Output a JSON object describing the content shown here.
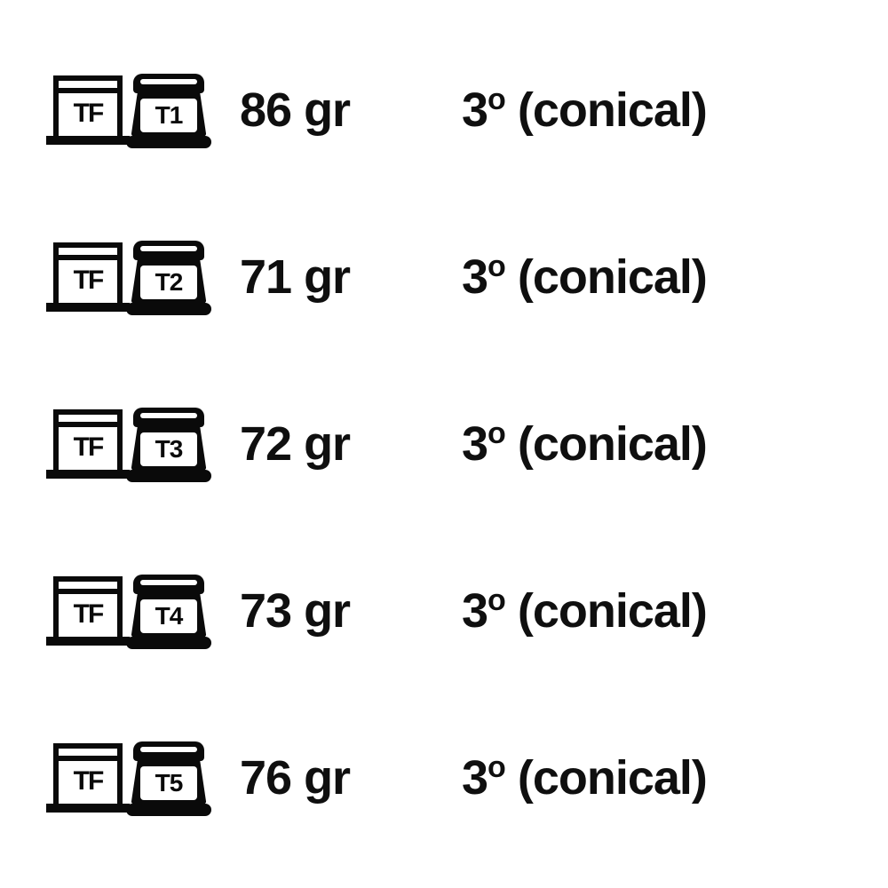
{
  "rows": [
    {
      "tf_label": "TF",
      "tn_label": "T1",
      "weight": "86 gr",
      "angle_value": "3",
      "angle_note": "(conical)"
    },
    {
      "tf_label": "TF",
      "tn_label": "T2",
      "weight": "71 gr",
      "angle_value": "3",
      "angle_note": "(conical)"
    },
    {
      "tf_label": "TF",
      "tn_label": "T3",
      "weight": "72 gr",
      "angle_value": "3",
      "angle_note": "(conical)"
    },
    {
      "tf_label": "TF",
      "tn_label": "T4",
      "weight": "73 gr",
      "angle_value": "3",
      "angle_note": "(conical)"
    },
    {
      "tf_label": "TF",
      "tn_label": "T5",
      "weight": "76 gr",
      "angle_value": "3",
      "angle_note": "(conical)"
    }
  ],
  "style": {
    "text_color": "#0f0f0f",
    "icon_color": "#0a0a0a",
    "background": "#ffffff",
    "font_size_pt": 40,
    "font_weight": 800
  }
}
